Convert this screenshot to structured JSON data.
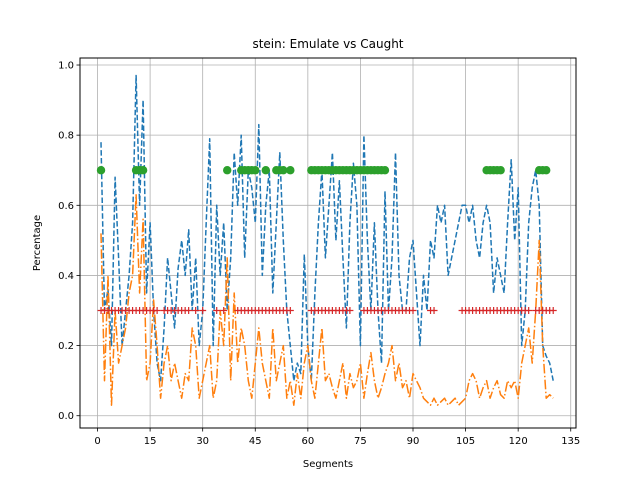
{
  "chart_data": {
    "type": "line",
    "title": "stein: Emulate vs Caught",
    "xlabel": "Segments",
    "ylabel": "Percentage",
    "xlim": [
      -5,
      136.5
    ],
    "ylim": [
      -0.035,
      1.02
    ],
    "xticks": [
      0,
      15,
      30,
      45,
      60,
      75,
      90,
      105,
      120,
      135
    ],
    "yticks": [
      0.0,
      0.2,
      0.4,
      0.6,
      0.8,
      1.0
    ],
    "grid": true,
    "colors": {
      "series1": "#1f77b4",
      "series2": "#ff7f0e",
      "series3": "#2ca02c",
      "series4": "#d62728"
    },
    "series": [
      {
        "style": "dashed",
        "color": "#1f77b4",
        "x": [
          1,
          2,
          3,
          4,
          5,
          6,
          7,
          8,
          9,
          10,
          11,
          12,
          13,
          14,
          15,
          16,
          17,
          18,
          19,
          20,
          21,
          22,
          23,
          24,
          25,
          26,
          27,
          28,
          29,
          30,
          31,
          32,
          33,
          34,
          35,
          36,
          37,
          38,
          39,
          40,
          41,
          42,
          43,
          44,
          45,
          46,
          47,
          48,
          49,
          50,
          51,
          52,
          53,
          54,
          55,
          56,
          57,
          58,
          59,
          60,
          61,
          62,
          63,
          64,
          65,
          66,
          67,
          68,
          69,
          70,
          71,
          72,
          73,
          74,
          75,
          76,
          77,
          78,
          79,
          80,
          81,
          82,
          83,
          84,
          85,
          86,
          87,
          88,
          89,
          90,
          91,
          92,
          93,
          94,
          95,
          96,
          97,
          98,
          99,
          100,
          101,
          102,
          103,
          104,
          105,
          106,
          107,
          108,
          109,
          110,
          111,
          112,
          113,
          114,
          115,
          116,
          117,
          118,
          119,
          120,
          121,
          122,
          123,
          124,
          125,
          126,
          127,
          128,
          129,
          130
        ],
        "y": [
          0.78,
          0.3,
          0.36,
          0.2,
          0.68,
          0.45,
          0.2,
          0.3,
          0.4,
          0.55,
          0.97,
          0.6,
          0.9,
          0.35,
          0.55,
          0.3,
          0.15,
          0.1,
          0.25,
          0.45,
          0.35,
          0.25,
          0.42,
          0.5,
          0.4,
          0.53,
          0.3,
          0.45,
          0.2,
          0.3,
          0.55,
          0.79,
          0.2,
          0.6,
          0.4,
          0.55,
          0.3,
          0.45,
          0.75,
          0.6,
          0.8,
          0.45,
          0.7,
          0.65,
          0.55,
          0.83,
          0.4,
          0.6,
          0.7,
          0.35,
          0.55,
          0.75,
          0.5,
          0.3,
          0.2,
          0.1,
          0.15,
          0.12,
          0.46,
          0.2,
          0.1,
          0.35,
          0.55,
          0.7,
          0.45,
          0.6,
          0.75,
          0.5,
          0.67,
          0.45,
          0.25,
          0.55,
          0.72,
          0.6,
          0.2,
          0.8,
          0.5,
          0.3,
          0.55,
          0.3,
          0.15,
          0.64,
          0.3,
          0.45,
          0.75,
          0.4,
          0.3,
          0.3,
          0.45,
          0.5,
          0.35,
          0.2,
          0.4,
          0.3,
          0.5,
          0.45,
          0.6,
          0.55,
          0.6,
          0.4,
          0.45,
          0.5,
          0.55,
          0.6,
          0.6,
          0.55,
          0.6,
          0.5,
          0.45,
          0.55,
          0.6,
          0.55,
          0.35,
          0.45,
          0.4,
          0.35,
          0.55,
          0.73,
          0.5,
          0.65,
          0.2,
          0.3,
          0.55,
          0.65,
          0.7,
          0.6,
          0.2,
          0.17,
          0.15,
          0.1
        ]
      },
      {
        "style": "dashdot",
        "color": "#ff7f0e",
        "x": [
          1,
          2,
          3,
          4,
          5,
          6,
          7,
          8,
          9,
          10,
          11,
          12,
          13,
          14,
          15,
          16,
          17,
          18,
          19,
          20,
          21,
          22,
          23,
          24,
          25,
          26,
          27,
          28,
          29,
          30,
          31,
          32,
          33,
          34,
          35,
          36,
          37,
          38,
          39,
          40,
          41,
          42,
          43,
          44,
          45,
          46,
          47,
          48,
          49,
          50,
          51,
          52,
          53,
          54,
          55,
          56,
          57,
          58,
          59,
          60,
          61,
          62,
          63,
          64,
          65,
          66,
          67,
          68,
          69,
          70,
          71,
          72,
          73,
          74,
          75,
          76,
          77,
          78,
          79,
          80,
          81,
          82,
          83,
          84,
          85,
          86,
          87,
          88,
          89,
          90,
          91,
          92,
          93,
          94,
          95,
          96,
          97,
          98,
          99,
          100,
          101,
          102,
          103,
          104,
          105,
          106,
          107,
          108,
          109,
          110,
          111,
          112,
          113,
          114,
          115,
          116,
          117,
          118,
          119,
          120,
          121,
          122,
          123,
          124,
          125,
          126,
          127,
          128,
          129,
          130
        ],
        "y": [
          0.52,
          0.1,
          0.4,
          0.03,
          0.3,
          0.15,
          0.2,
          0.25,
          0.35,
          0.4,
          0.63,
          0.35,
          0.56,
          0.1,
          0.15,
          0.33,
          0.2,
          0.05,
          0.15,
          0.2,
          0.1,
          0.15,
          0.1,
          0.05,
          0.12,
          0.1,
          0.25,
          0.2,
          0.05,
          0.1,
          0.15,
          0.2,
          0.05,
          0.1,
          0.3,
          0.2,
          0.45,
          0.1,
          0.35,
          0.15,
          0.25,
          0.2,
          0.1,
          0.05,
          0.15,
          0.25,
          0.15,
          0.1,
          0.05,
          0.25,
          0.1,
          0.15,
          0.2,
          0.05,
          0.1,
          0.03,
          0.12,
          0.05,
          0.15,
          0.2,
          0.1,
          0.05,
          0.15,
          0.25,
          0.1,
          0.12,
          0.08,
          0.05,
          0.1,
          0.15,
          0.05,
          0.12,
          0.08,
          0.1,
          0.15,
          0.05,
          0.12,
          0.18,
          0.1,
          0.05,
          0.08,
          0.12,
          0.15,
          0.2,
          0.1,
          0.15,
          0.08,
          0.1,
          0.05,
          0.12,
          0.1,
          0.08,
          0.05,
          0.04,
          0.03,
          0.05,
          0.03,
          0.04,
          0.05,
          0.03,
          0.04,
          0.05,
          0.03,
          0.04,
          0.05,
          0.1,
          0.12,
          0.1,
          0.05,
          0.08,
          0.1,
          0.05,
          0.08,
          0.1,
          0.06,
          0.05,
          0.1,
          0.08,
          0.1,
          0.05,
          0.15,
          0.2,
          0.25,
          0.15,
          0.3,
          0.5,
          0.2,
          0.05,
          0.06,
          0.05
        ]
      },
      {
        "style": "markers-circle",
        "color": "#2ca02c",
        "x": [
          1,
          11,
          12,
          13,
          37,
          41,
          42,
          43,
          44,
          45,
          48,
          51,
          52,
          53,
          55,
          61,
          62,
          63,
          64,
          65,
          66,
          67,
          68,
          69,
          70,
          71,
          72,
          73,
          74,
          75,
          76,
          77,
          78,
          79,
          80,
          81,
          82,
          111,
          112,
          113,
          114,
          115,
          126,
          127,
          128
        ],
        "y": [
          0.7,
          0.7,
          0.7,
          0.7,
          0.7,
          0.7,
          0.7,
          0.7,
          0.7,
          0.7,
          0.7,
          0.7,
          0.7,
          0.7,
          0.7,
          0.7,
          0.7,
          0.7,
          0.7,
          0.7,
          0.7,
          0.7,
          0.7,
          0.7,
          0.7,
          0.7,
          0.7,
          0.7,
          0.7,
          0.7,
          0.7,
          0.7,
          0.7,
          0.7,
          0.7,
          0.7,
          0.7,
          0.7,
          0.7,
          0.7,
          0.7,
          0.7,
          0.7,
          0.7,
          0.7
        ]
      },
      {
        "style": "markers-plus",
        "color": "#d62728",
        "x": [
          1,
          2,
          3,
          4,
          5,
          6,
          7,
          8,
          9,
          10,
          11,
          12,
          13,
          14,
          15,
          16,
          17,
          19,
          20,
          21,
          22,
          23,
          24,
          25,
          26,
          28,
          30,
          34,
          36,
          40,
          41,
          42,
          43,
          44,
          45,
          46,
          47,
          48,
          49,
          50,
          51,
          52,
          53,
          54,
          55,
          61,
          62,
          63,
          64,
          65,
          66,
          67,
          68,
          69,
          70,
          71,
          72,
          76,
          77,
          78,
          79,
          80,
          81,
          82,
          83,
          84,
          85,
          86,
          87,
          88,
          89,
          90,
          95,
          96,
          104,
          105,
          106,
          107,
          108,
          109,
          110,
          111,
          112,
          113,
          114,
          115,
          116,
          117,
          118,
          119,
          120,
          121,
          122,
          123,
          125,
          126,
          127,
          128,
          129,
          130
        ],
        "y": [
          0.3,
          0.3,
          0.3,
          0.3,
          0.3,
          0.3,
          0.3,
          0.3,
          0.3,
          0.3,
          0.3,
          0.3,
          0.3,
          0.3,
          0.3,
          0.3,
          0.3,
          0.3,
          0.3,
          0.3,
          0.3,
          0.3,
          0.3,
          0.3,
          0.3,
          0.3,
          0.3,
          0.3,
          0.3,
          0.3,
          0.3,
          0.3,
          0.3,
          0.3,
          0.3,
          0.3,
          0.3,
          0.3,
          0.3,
          0.3,
          0.3,
          0.3,
          0.3,
          0.3,
          0.3,
          0.3,
          0.3,
          0.3,
          0.3,
          0.3,
          0.3,
          0.3,
          0.3,
          0.3,
          0.3,
          0.3,
          0.3,
          0.3,
          0.3,
          0.3,
          0.3,
          0.3,
          0.3,
          0.3,
          0.3,
          0.3,
          0.3,
          0.3,
          0.3,
          0.3,
          0.3,
          0.3,
          0.3,
          0.3,
          0.3,
          0.3,
          0.3,
          0.3,
          0.3,
          0.3,
          0.3,
          0.3,
          0.3,
          0.3,
          0.3,
          0.3,
          0.3,
          0.3,
          0.3,
          0.3,
          0.3,
          0.3,
          0.3,
          0.3,
          0.3,
          0.3,
          0.3,
          0.3,
          0.3,
          0.3
        ]
      }
    ]
  }
}
